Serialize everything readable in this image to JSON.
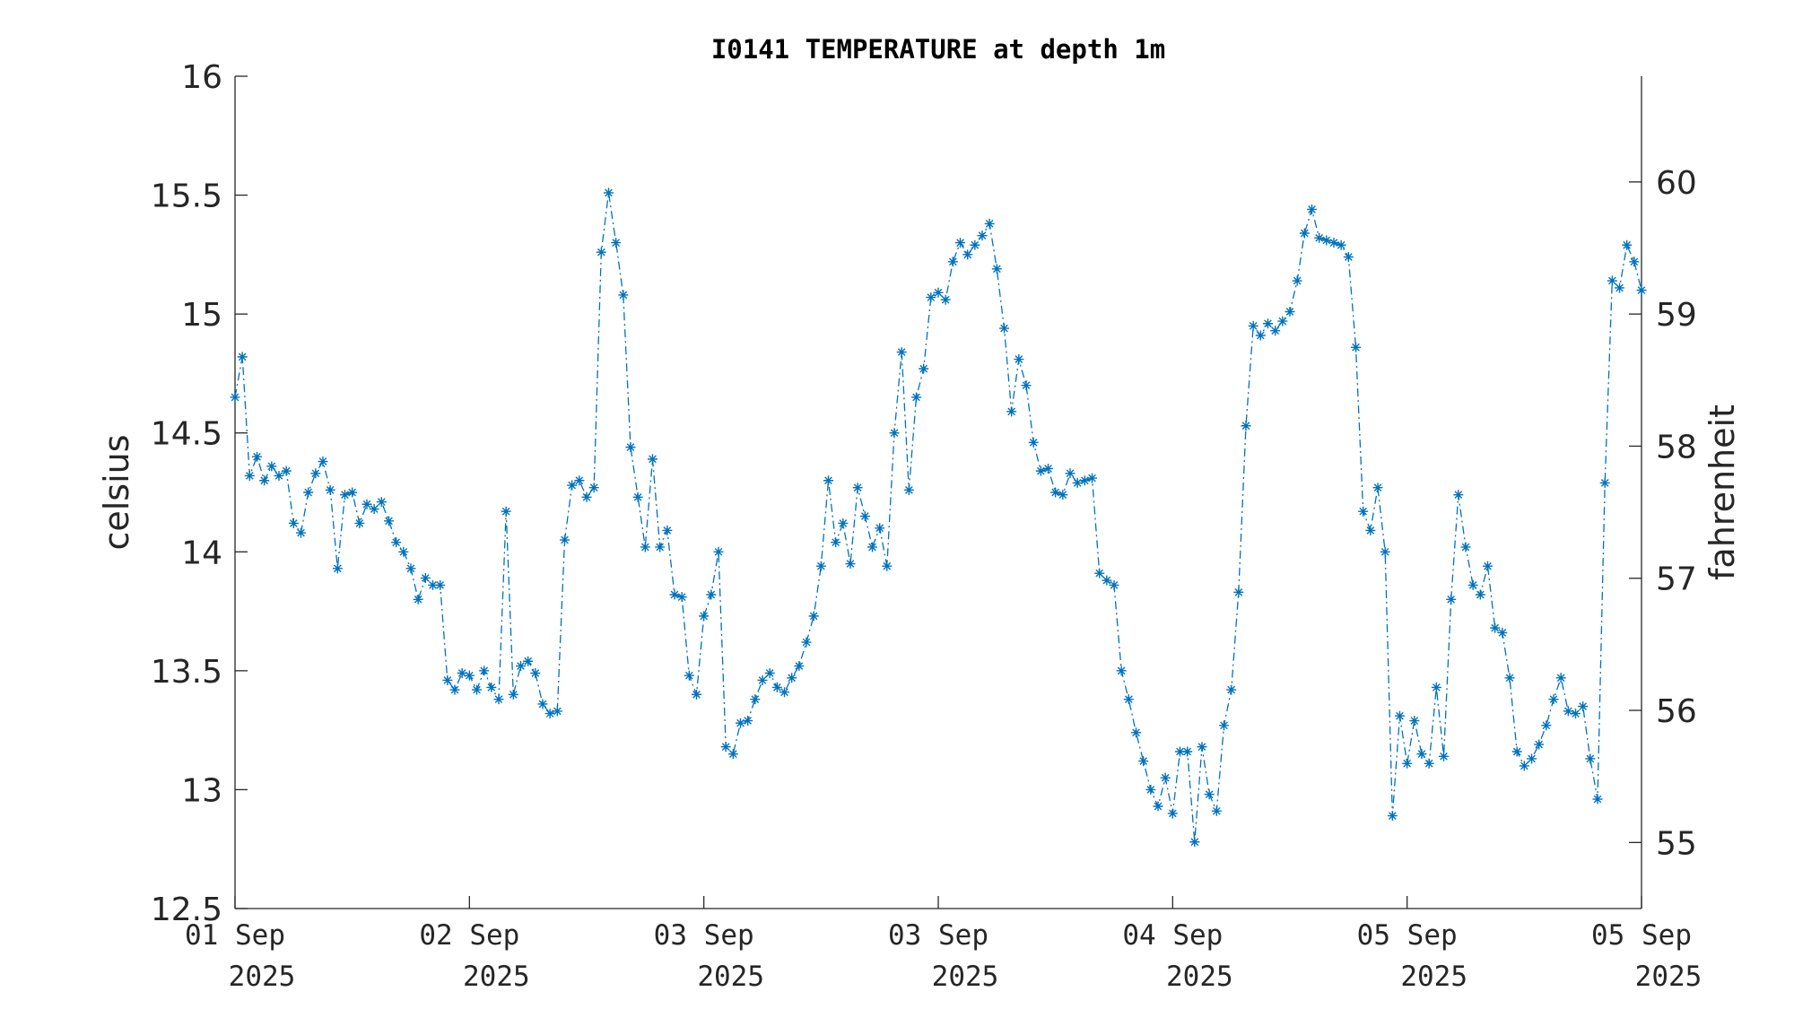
{
  "chart_data": {
    "type": "line",
    "title": "I0141 TEMPERATURE at depth 1m",
    "ylabel": "celsius",
    "y2label": "fahrenheit",
    "ylim": [
      12.5,
      16
    ],
    "y2lim": [
      54.5,
      60.8
    ],
    "yticks": [
      "12.5",
      "13",
      "13.5",
      "14",
      "14.5",
      "15",
      "15.5",
      "16"
    ],
    "y2ticks": [
      "55",
      "56",
      "57",
      "58",
      "59",
      "60"
    ],
    "xticks": [
      {
        "line1": "01 Sep",
        "line2": "2025"
      },
      {
        "line1": "02 Sep",
        "line2": "2025"
      },
      {
        "line1": "03 Sep",
        "line2": "2025"
      },
      {
        "line1": "03 Sep",
        "line2": "2025"
      },
      {
        "line1": "04 Sep",
        "line2": "2025"
      },
      {
        "line1": "05 Sep",
        "line2": "2025"
      },
      {
        "line1": "05 Sep",
        "line2": "2025"
      }
    ],
    "grid": false,
    "marker": "asterisk",
    "line_style": "dash-dot",
    "series_color": "#0072BD",
    "series": [
      {
        "values": [
          14.65,
          14.82,
          14.32,
          14.4,
          14.3,
          14.36,
          14.32,
          14.34,
          14.12,
          14.08,
          14.25,
          14.33,
          14.38,
          14.26,
          13.93,
          14.24,
          14.25,
          14.12,
          14.2,
          14.18,
          14.21,
          14.13,
          14.04,
          14.0,
          13.93,
          13.8,
          13.89,
          13.86,
          13.86,
          13.46,
          13.42,
          13.49,
          13.48,
          13.42,
          13.5,
          13.43,
          13.38,
          14.17,
          13.4,
          13.52,
          13.54,
          13.49,
          13.36,
          13.32,
          13.33,
          14.05,
          14.28,
          14.3,
          14.23,
          14.27,
          15.26,
          15.51,
          15.3,
          15.08,
          14.44,
          14.23,
          14.02,
          14.39,
          14.02,
          14.09,
          13.82,
          13.81,
          13.48,
          13.4,
          13.73,
          13.82,
          14.0,
          13.18,
          13.15,
          13.28,
          13.29,
          13.38,
          13.46,
          13.49,
          13.43,
          13.41,
          13.47,
          13.52,
          13.62,
          13.73,
          13.94,
          14.3,
          14.04,
          14.12,
          13.95,
          14.27,
          14.15,
          14.02,
          14.1,
          13.94,
          14.5,
          14.84,
          14.26,
          14.65,
          14.77,
          15.07,
          15.09,
          15.06,
          15.22,
          15.3,
          15.25,
          15.29,
          15.33,
          15.38,
          15.19,
          14.94,
          14.59,
          14.81,
          14.7,
          14.46,
          14.34,
          14.35,
          14.25,
          14.24,
          14.33,
          14.29,
          14.3,
          14.31,
          13.91,
          13.88,
          13.86,
          13.5,
          13.38,
          13.24,
          13.12,
          13.0,
          12.93,
          13.05,
          12.9,
          13.16,
          13.16,
          12.78,
          13.18,
          12.98,
          12.91,
          13.27,
          13.42,
          13.83,
          14.53,
          14.95,
          14.91,
          14.96,
          14.93,
          14.97,
          15.01,
          15.14,
          15.34,
          15.44,
          15.32,
          15.31,
          15.3,
          15.29,
          15.24,
          14.86,
          14.17,
          14.09,
          14.27,
          14.0,
          12.89,
          13.31,
          13.11,
          13.29,
          13.15,
          13.11,
          13.43,
          13.14,
          13.8,
          14.24,
          14.02,
          13.86,
          13.82,
          13.94,
          13.68,
          13.66,
          13.47,
          13.16,
          13.1,
          13.13,
          13.19,
          13.27,
          13.38,
          13.47,
          13.33,
          13.32,
          13.35,
          13.13,
          12.96,
          14.29,
          15.14,
          15.11,
          15.29,
          15.22,
          15.1
        ]
      }
    ]
  }
}
